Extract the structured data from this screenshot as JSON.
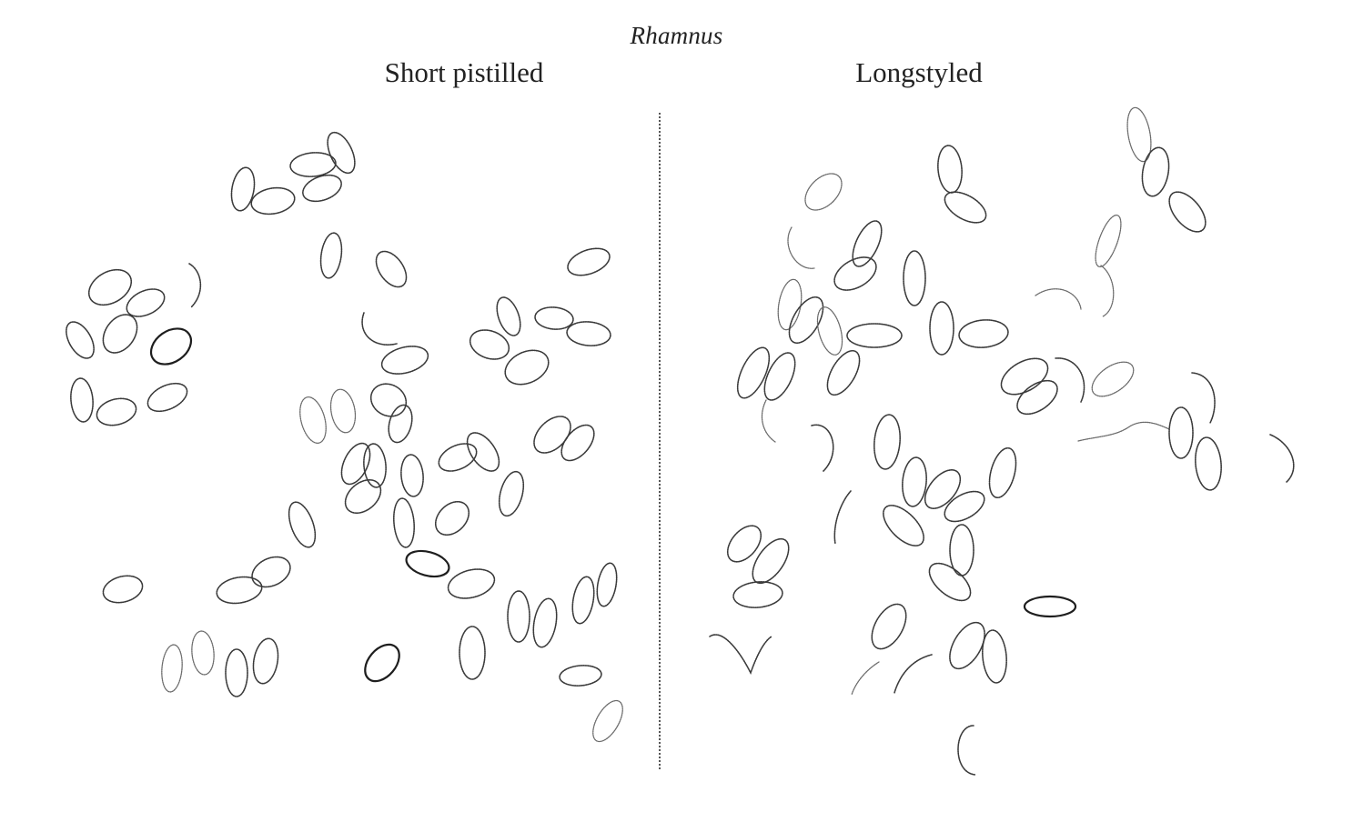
{
  "title": "Rhamnus",
  "panels": [
    {
      "label": "Short pistilled"
    },
    {
      "label": "Longstyled"
    }
  ],
  "colors": {
    "ink": "#3a3a3a",
    "background": "#ffffff"
  }
}
